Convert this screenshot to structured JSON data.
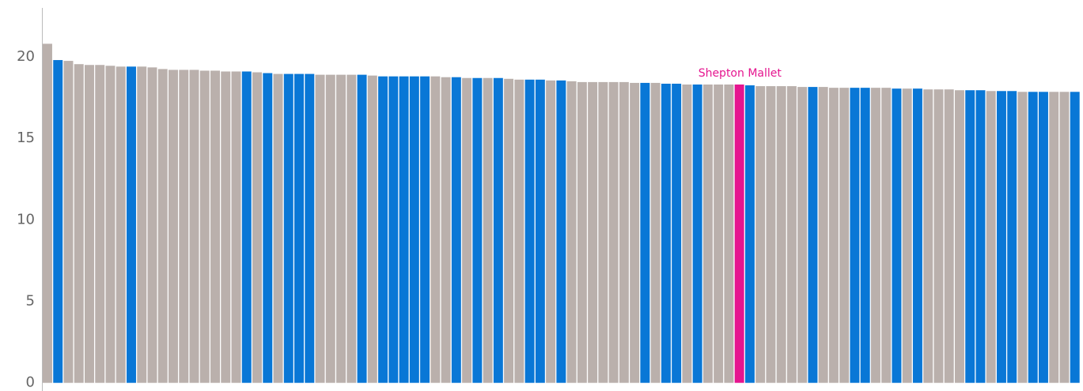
{
  "chart_data": {
    "type": "bar",
    "categories": [
      null,
      null,
      null,
      null,
      null,
      null,
      null,
      null,
      null,
      null,
      null,
      null,
      null,
      null,
      null,
      null,
      null,
      null,
      null,
      null,
      null,
      null,
      null,
      null,
      null,
      null,
      null,
      null,
      null,
      null,
      null,
      null,
      null,
      null,
      null,
      null,
      null,
      null,
      null,
      null,
      null,
      null,
      null,
      null,
      null,
      null,
      null,
      null,
      null,
      null,
      null,
      null,
      null,
      null,
      null,
      null,
      null,
      null,
      null,
      null,
      null,
      null,
      null,
      null,
      null,
      null,
      "Shepton Mallet",
      null,
      null,
      null,
      null,
      null,
      null,
      null,
      null,
      null,
      null,
      null,
      null,
      null,
      null,
      null,
      null,
      null,
      null,
      null,
      null,
      null,
      null,
      null,
      null,
      null,
      null,
      null,
      null,
      null,
      null,
      null,
      null
    ],
    "values": [
      20.8,
      19.8,
      19.75,
      19.55,
      19.5,
      19.5,
      19.45,
      19.4,
      19.4,
      19.4,
      19.35,
      19.25,
      19.2,
      19.2,
      19.2,
      19.15,
      19.15,
      19.1,
      19.1,
      19.1,
      19.05,
      19.0,
      18.95,
      18.95,
      18.95,
      18.95,
      18.9,
      18.9,
      18.9,
      18.9,
      18.9,
      18.85,
      18.8,
      18.8,
      18.8,
      18.8,
      18.8,
      18.8,
      18.75,
      18.75,
      18.7,
      18.7,
      18.7,
      18.7,
      18.65,
      18.6,
      18.6,
      18.6,
      18.55,
      18.55,
      18.5,
      18.45,
      18.45,
      18.45,
      18.45,
      18.45,
      18.4,
      18.4,
      18.4,
      18.35,
      18.35,
      18.3,
      18.3,
      18.3,
      18.3,
      18.3,
      18.3,
      18.25,
      18.2,
      18.2,
      18.2,
      18.2,
      18.15,
      18.15,
      18.15,
      18.1,
      18.1,
      18.1,
      18.1,
      18.1,
      18.1,
      18.05,
      18.05,
      18.05,
      18.0,
      18.0,
      18.0,
      17.95,
      17.95,
      17.95,
      17.9,
      17.9,
      17.9,
      17.85,
      17.85,
      17.85,
      17.85,
      17.85,
      17.85
    ],
    "colors": [
      "#bab0ac",
      "#0977d6",
      "#bab0ac",
      "#bab0ac",
      "#bab0ac",
      "#bab0ac",
      "#bab0ac",
      "#bab0ac",
      "#0977d6",
      "#bab0ac",
      "#bab0ac",
      "#bab0ac",
      "#bab0ac",
      "#bab0ac",
      "#bab0ac",
      "#bab0ac",
      "#bab0ac",
      "#bab0ac",
      "#bab0ac",
      "#0977d6",
      "#bab0ac",
      "#0977d6",
      "#bab0ac",
      "#0977d6",
      "#0977d6",
      "#0977d6",
      "#bab0ac",
      "#bab0ac",
      "#bab0ac",
      "#bab0ac",
      "#0977d6",
      "#bab0ac",
      "#0977d6",
      "#0977d6",
      "#0977d6",
      "#0977d6",
      "#0977d6",
      "#bab0ac",
      "#bab0ac",
      "#0977d6",
      "#bab0ac",
      "#0977d6",
      "#bab0ac",
      "#0977d6",
      "#bab0ac",
      "#bab0ac",
      "#0977d6",
      "#0977d6",
      "#bab0ac",
      "#0977d6",
      "#bab0ac",
      "#bab0ac",
      "#bab0ac",
      "#bab0ac",
      "#bab0ac",
      "#bab0ac",
      "#bab0ac",
      "#0977d6",
      "#bab0ac",
      "#0977d6",
      "#0977d6",
      "#bab0ac",
      "#0977d6",
      "#bab0ac",
      "#bab0ac",
      "#bab0ac",
      "#e5158f",
      "#0977d6",
      "#bab0ac",
      "#bab0ac",
      "#bab0ac",
      "#bab0ac",
      "#bab0ac",
      "#0977d6",
      "#bab0ac",
      "#bab0ac",
      "#bab0ac",
      "#0977d6",
      "#0977d6",
      "#bab0ac",
      "#bab0ac",
      "#0977d6",
      "#bab0ac",
      "#0977d6",
      "#bab0ac",
      "#bab0ac",
      "#bab0ac",
      "#bab0ac",
      "#0977d6",
      "#0977d6",
      "#bab0ac",
      "#0977d6",
      "#0977d6",
      "#bab0ac",
      "#0977d6",
      "#0977d6",
      "#bab0ac",
      "#bab0ac",
      "#0977d6"
    ],
    "label_color": "#e5158f",
    "ylim": [
      -0.5,
      23
    ],
    "yticks": [
      0,
      5,
      10,
      15,
      20
    ],
    "grid": false
  }
}
